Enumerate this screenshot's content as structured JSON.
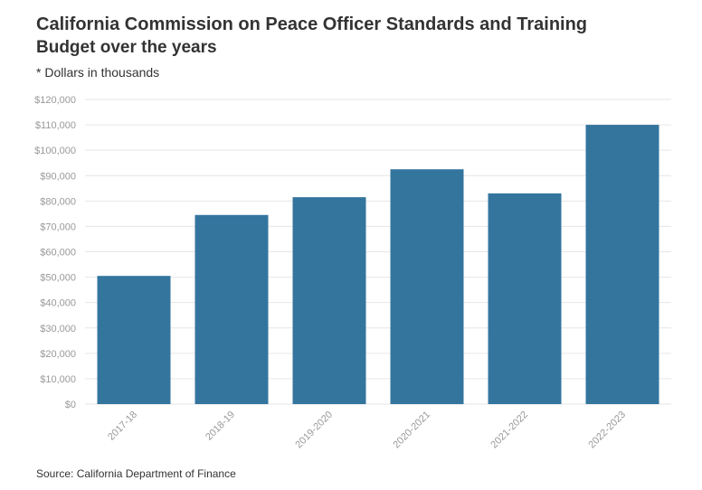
{
  "header": {
    "title": "California Commission on Peace Officer Standards and Training",
    "subtitle": "Budget over the years",
    "note": "* Dollars in thousands"
  },
  "footer": {
    "source": "Source: California Department of Finance"
  },
  "colors": {
    "bar": "#34759e",
    "grid": "#e6e6e6",
    "tick_text": "#999999"
  },
  "chart_data": {
    "type": "bar",
    "title": "California Commission on Peace Officer Standards and Training",
    "subtitle": "Budget over the years",
    "categories": [
      "2017-18",
      "2018-19",
      "2019-2020",
      "2020-2021",
      "2021-2022",
      "2022-2023"
    ],
    "values": [
      50500,
      74500,
      81500,
      92500,
      83000,
      110000
    ],
    "ylim": [
      0,
      120000
    ],
    "yticks": [
      0,
      10000,
      20000,
      30000,
      40000,
      50000,
      60000,
      70000,
      80000,
      90000,
      100000,
      110000,
      120000
    ],
    "ytick_labels": [
      "$0",
      "$10,000",
      "$20,000",
      "$30,000",
      "$40,000",
      "$50,000",
      "$60,000",
      "$70,000",
      "$80,000",
      "$90,000",
      "$100,000",
      "$110,000",
      "$120,000"
    ],
    "grid": true,
    "legend": "none"
  }
}
